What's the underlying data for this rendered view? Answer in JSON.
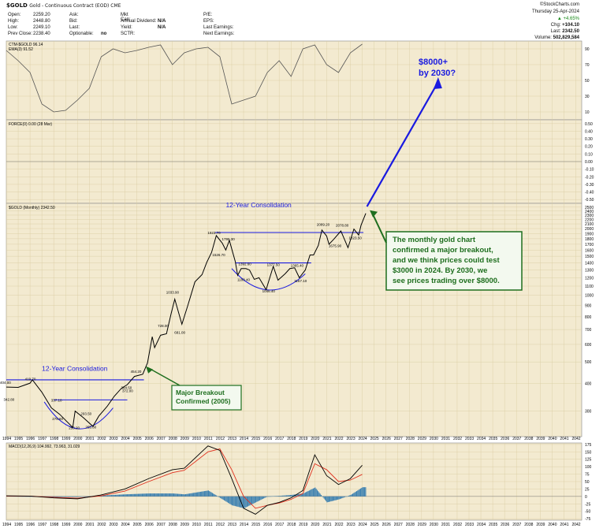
{
  "header": {
    "symbol": "$GOLD",
    "desc": "Gold - Continuous Contract (EOD) CME",
    "source": "©StockCharts.com",
    "date": "Thursday  25-Apr-2024",
    "open_label": "Open:",
    "open": "2259.20",
    "high_label": "High:",
    "high": "2448.80",
    "low_label": "Low:",
    "low": "2249.10",
    "prevclose_label": "Prev Close:",
    "prevclose": "2238.40",
    "ask_label": "Ask:",
    "bid_label": "Bid:",
    "last_label": "Last:",
    "optionable_label": "Optionable:",
    "optionable": "no",
    "mktcap_label": "Mkt Cap:",
    "annualdiv_label": "Annual Dividend:",
    "annualdiv": "N/A",
    "yield_label": "Yield:",
    "yield": "N/A",
    "sctr_label": "SCTR:",
    "pe_label": "P/E:",
    "eps_label": "EPS:",
    "lastearn_label": "Last Earnings:",
    "nextearn_label": "Next Earnings:",
    "pct": "+4.65%",
    "chg_label": "Chg:",
    "chg": "+104.10",
    "last": "2342.50",
    "volume_label": "Volume:",
    "volume": "502,829,584"
  },
  "colors": {
    "panel_bg": "#f3ead0",
    "price": "#000000",
    "blue": "#1a1ae0",
    "green": "#1e6e1e",
    "green_bg": "#f3f9ef",
    "macd_line": "#000000",
    "signal_line": "#e0301e",
    "hist": "#3a7fb0",
    "ctm": "#555555"
  },
  "panels": {
    "ctm_label": "CTM-$GOLD 96.14",
    "ema_label": "EMA(3) 91.52",
    "force_label": "FORCE(0) 0.00 (28 Mar)",
    "price_label": "$GOLD (Monthly) 2342.50",
    "macd_label": "MACD(12,26,9) 104.992, 73.963, 31.029"
  },
  "annotations": {
    "forecast": "$8000+\nby 2030?",
    "consol_top": "12-Year Consolidation",
    "consol_bottom": "12-Year Consolidation",
    "major": "Major Breakout\nConfirmed (2005)",
    "box": "The monthly gold chart\nconfirmed a major breakout,\nand we think prices could test\n$3000 in 2024. By 2030, we\nsee prices trading over $8000."
  },
  "chart_data": {
    "type": "line",
    "title": "$GOLD (Monthly)",
    "x_years": [
      "1994",
      "1995",
      "1996",
      "1997",
      "1998",
      "1999",
      "2000",
      "2001",
      "2002",
      "2003",
      "2004",
      "2005",
      "2006",
      "2007",
      "2008",
      "2009",
      "2010",
      "2011",
      "2012",
      "2013",
      "2014",
      "2015",
      "2016",
      "2017",
      "2018",
      "2019",
      "2020",
      "2021",
      "2022",
      "2023",
      "2024",
      "2025",
      "2026",
      "2027",
      "2028",
      "2029",
      "2030",
      "2031",
      "2032",
      "2033",
      "2034",
      "2035",
      "2036",
      "2037",
      "2038",
      "2039",
      "2040",
      "2041",
      "2042"
    ],
    "yscale": "log",
    "ylim": [
      230,
      2600
    ],
    "y_ticks": [
      2500,
      2400,
      2300,
      2200,
      2100,
      2000,
      1900,
      1800,
      1700,
      1600,
      1500,
      1400,
      1300,
      1200,
      1100,
      1000,
      900,
      800,
      700,
      600,
      500,
      400,
      300
    ],
    "price_series": [
      [
        1994.0,
        385
      ],
      [
        1995.0,
        384
      ],
      [
        1996.0,
        401
      ],
      [
        1996.2,
        415
      ],
      [
        1997.0,
        365
      ],
      [
        1997.8,
        310
      ],
      [
        1998.5,
        290
      ],
      [
        1999.6,
        253
      ],
      [
        1999.8,
        300
      ],
      [
        2000.5,
        280
      ],
      [
        2001.3,
        256
      ],
      [
        2001.8,
        285
      ],
      [
        2002.5,
        315
      ],
      [
        2003.1,
        350
      ],
      [
        2003.7,
        380
      ],
      [
        2004.2,
        395
      ],
      [
        2004.8,
        430
      ],
      [
        2005.5,
        440
      ],
      [
        2005.9,
        495
      ],
      [
        2006.3,
        650
      ],
      [
        2006.5,
        580
      ],
      [
        2007.0,
        660
      ],
      [
        2007.5,
        670
      ],
      [
        2007.9,
        830
      ],
      [
        2008.2,
        960
      ],
      [
        2008.8,
        740
      ],
      [
        2009.3,
        900
      ],
      [
        2009.9,
        1150
      ],
      [
        2010.5,
        1240
      ],
      [
        2010.9,
        1410
      ],
      [
        2011.3,
        1560
      ],
      [
        2011.7,
        1860
      ],
      [
        2012.2,
        1720
      ],
      [
        2012.5,
        1600
      ],
      [
        2012.8,
        1770
      ],
      [
        2013.3,
        1420
      ],
      [
        2013.5,
        1230
      ],
      [
        2013.8,
        1320
      ],
      [
        2014.2,
        1320
      ],
      [
        2014.5,
        1300
      ],
      [
        2014.9,
        1180
      ],
      [
        2015.3,
        1200
      ],
      [
        2015.9,
        1060
      ],
      [
        2016.5,
        1350
      ],
      [
        2016.9,
        1170
      ],
      [
        2017.5,
        1250
      ],
      [
        2017.9,
        1320
      ],
      [
        2018.3,
        1330
      ],
      [
        2018.7,
        1200
      ],
      [
        2019.2,
        1300
      ],
      [
        2019.6,
        1520
      ],
      [
        2019.9,
        1520
      ],
      [
        2020.3,
        1680
      ],
      [
        2020.6,
        1970
      ],
      [
        2021.0,
        1850
      ],
      [
        2021.2,
        1700
      ],
      [
        2021.6,
        1790
      ],
      [
        2022.2,
        1950
      ],
      [
        2022.8,
        1640
      ],
      [
        2023.3,
        1990
      ],
      [
        2023.7,
        1870
      ],
      [
        2023.9,
        2070
      ],
      [
        2024.3,
        2342.5
      ]
    ],
    "price_labels": [
      {
        "x": 1994.0,
        "y": 404,
        "text": "404.00"
      },
      {
        "x": 1996.1,
        "y": 420,
        "text": "419.70"
      },
      {
        "x": 1994.3,
        "y": 340,
        "text": "342.80"
      },
      {
        "x": 1998.3,
        "y": 337,
        "text": "337.10"
      },
      {
        "x": 1998.4,
        "y": 278,
        "text": "278.60"
      },
      {
        "x": 2000.8,
        "y": 293,
        "text": "293.50"
      },
      {
        "x": 1999.8,
        "y": 253,
        "text": "253.20"
      },
      {
        "x": 2001.2,
        "y": 255,
        "text": "255.80"
      },
      {
        "x": 2004.2,
        "y": 384,
        "text": "384.50"
      },
      {
        "x": 2005.0,
        "y": 454,
        "text": "454.20"
      },
      {
        "x": 2004.3,
        "y": 372,
        "text": "372.00"
      },
      {
        "x": 2007.3,
        "y": 730,
        "text": "728.00"
      },
      {
        "x": 2008.7,
        "y": 681,
        "text": "681.00"
      },
      {
        "x": 2008.0,
        "y": 1033,
        "text": "1033.90"
      },
      {
        "x": 2011.5,
        "y": 1920,
        "text": "1923.70"
      },
      {
        "x": 2012.7,
        "y": 1795,
        "text": "1795.30"
      },
      {
        "x": 2011.9,
        "y": 1526,
        "text": "1526.70"
      },
      {
        "x": 2014.1,
        "y": 1392,
        "text": "1392.60"
      },
      {
        "x": 2016.5,
        "y": 1377,
        "text": "1377.50"
      },
      {
        "x": 2018.5,
        "y": 1365,
        "text": "1365.40"
      },
      {
        "x": 2014.0,
        "y": 1180,
        "text": "1180.40"
      },
      {
        "x": 2016.1,
        "y": 1046,
        "text": "1046.40"
      },
      {
        "x": 2018.8,
        "y": 1167,
        "text": "1167.10"
      },
      {
        "x": 2020.7,
        "y": 2089,
        "text": "2089.20"
      },
      {
        "x": 2022.3,
        "y": 2078,
        "text": "2078.80"
      },
      {
        "x": 2021.7,
        "y": 1675,
        "text": "1675.90"
      },
      {
        "x": 2023.4,
        "y": 1823,
        "text": "1823.50"
      }
    ],
    "resistance_lines": [
      {
        "x1": 1994.0,
        "x2": 2005.6,
        "y": 415
      },
      {
        "x1": 2011.6,
        "x2": 2024.1,
        "y": 1920
      },
      {
        "x1": 1998.0,
        "x2": 2004.2,
        "y": 337
      },
      {
        "x1": 2013.3,
        "x2": 2019.7,
        "y": 1400
      }
    ],
    "ctm_ylim": [
      0,
      100
    ],
    "ctm_ticks": [
      90,
      70,
      50,
      30,
      10
    ],
    "ctm_series": [
      [
        1994,
        88
      ],
      [
        1995,
        75
      ],
      [
        1996,
        60
      ],
      [
        1997,
        20
      ],
      [
        1998,
        10
      ],
      [
        1999,
        12
      ],
      [
        2000,
        25
      ],
      [
        2001,
        40
      ],
      [
        2002,
        80
      ],
      [
        2003,
        90
      ],
      [
        2004,
        85
      ],
      [
        2005,
        88
      ],
      [
        2006,
        92
      ],
      [
        2007,
        95
      ],
      [
        2008,
        70
      ],
      [
        2009,
        85
      ],
      [
        2010,
        90
      ],
      [
        2011,
        92
      ],
      [
        2012,
        80
      ],
      [
        2013,
        20
      ],
      [
        2014,
        25
      ],
      [
        2015,
        30
      ],
      [
        2016,
        60
      ],
      [
        2017,
        75
      ],
      [
        2018,
        55
      ],
      [
        2019,
        90
      ],
      [
        2020,
        95
      ],
      [
        2021,
        70
      ],
      [
        2022,
        60
      ],
      [
        2023,
        85
      ],
      [
        2024,
        96
      ]
    ],
    "force_ylim": [
      -0.55,
      0.55
    ],
    "force_ticks": [
      0.5,
      0.4,
      0.3,
      0.2,
      0.1,
      0.0,
      -0.1,
      -0.2,
      -0.3,
      -0.4,
      -0.5
    ],
    "macd_ylim": [
      -80,
      180
    ],
    "macd_ticks": [
      175,
      150,
      125,
      100,
      75,
      50,
      25,
      0,
      -25,
      -50,
      -75
    ],
    "macd_series": [
      [
        1994,
        2
      ],
      [
        1996,
        1
      ],
      [
        1998,
        -5
      ],
      [
        2000,
        -8
      ],
      [
        2002,
        5
      ],
      [
        2004,
        25
      ],
      [
        2006,
        60
      ],
      [
        2008,
        90
      ],
      [
        2009,
        95
      ],
      [
        2011,
        170
      ],
      [
        2012,
        155
      ],
      [
        2013,
        60
      ],
      [
        2014,
        -40
      ],
      [
        2015,
        -60
      ],
      [
        2016,
        -30
      ],
      [
        2017,
        -20
      ],
      [
        2018,
        -5
      ],
      [
        2019,
        20
      ],
      [
        2020,
        140
      ],
      [
        2021,
        70
      ],
      [
        2022,
        40
      ],
      [
        2023,
        60
      ],
      [
        2024,
        105
      ]
    ],
    "signal_series": [
      [
        1994,
        1
      ],
      [
        1996,
        1
      ],
      [
        1998,
        -3
      ],
      [
        2000,
        -6
      ],
      [
        2002,
        2
      ],
      [
        2004,
        18
      ],
      [
        2006,
        50
      ],
      [
        2008,
        80
      ],
      [
        2009,
        88
      ],
      [
        2011,
        150
      ],
      [
        2012,
        160
      ],
      [
        2013,
        90
      ],
      [
        2014,
        0
      ],
      [
        2015,
        -40
      ],
      [
        2016,
        -30
      ],
      [
        2017,
        -22
      ],
      [
        2018,
        -10
      ],
      [
        2019,
        10
      ],
      [
        2020,
        110
      ],
      [
        2021,
        90
      ],
      [
        2022,
        50
      ],
      [
        2023,
        55
      ],
      [
        2024,
        74
      ]
    ]
  }
}
